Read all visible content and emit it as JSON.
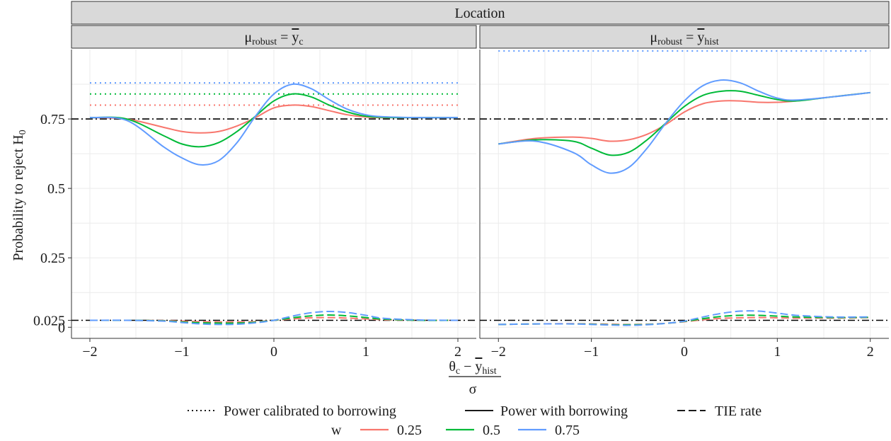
{
  "figure": {
    "strip_title": "Location",
    "ylabel_main": "Probability to reject H",
    "ylabel_sub": "0",
    "xlabel_num_main": "θ",
    "xlabel_num_sub1": "c",
    "xlabel_num_mid": " − ",
    "xlabel_num_ybar": "y",
    "xlabel_num_sub2": "hist",
    "xlabel_den": "σ"
  },
  "panels": [
    {
      "label_main": "μ",
      "label_sub1": "robust",
      "label_eq": " = ",
      "label_ybar": "y",
      "label_sub2": "c"
    },
    {
      "label_main": "μ",
      "label_sub1": "robust",
      "label_eq": " = ",
      "label_ybar": "y",
      "label_sub2": "hist"
    }
  ],
  "legend": {
    "linetype": [
      {
        "label": "Power calibrated to borrowing",
        "dash": "dotted"
      },
      {
        "label": "Power with borrowing",
        "dash": "solid"
      },
      {
        "label": "TIE rate",
        "dash": "dashed"
      }
    ],
    "color_title": "w",
    "colors": [
      {
        "label": "0.25",
        "color": "#F8766D"
      },
      {
        "label": "0.5",
        "color": "#00BA38"
      },
      {
        "label": "0.75",
        "color": "#619CFF"
      }
    ]
  },
  "chart_data": {
    "type": "line",
    "x_ticks": [
      "−2",
      "−1",
      "0",
      "1",
      "2"
    ],
    "y_ticks": [
      "0",
      "0.025",
      "0.25",
      "0.5",
      "0.75"
    ],
    "xlim": [
      -2.2,
      2.2
    ],
    "ylim": [
      -0.04,
      1.0
    ],
    "reference_line": {
      "y": 0.75,
      "style": "dotdash"
    },
    "reference_line_tie": {
      "y": 0.025,
      "style": "dotdash"
    },
    "panels": [
      {
        "x": [
          -2.0,
          -1.6,
          -1.2,
          -1.0,
          -0.8,
          -0.6,
          -0.4,
          -0.2,
          0.0,
          0.2,
          0.4,
          0.6,
          0.8,
          1.0,
          1.2,
          1.6,
          2.0
        ],
        "series": [
          {
            "w": "0.25",
            "kind": "calibrated",
            "const": 0.8
          },
          {
            "w": "0.5",
            "kind": "calibrated",
            "const": 0.84
          },
          {
            "w": "0.75",
            "kind": "calibrated",
            "const": 0.88
          },
          {
            "w": "0.25",
            "kind": "power",
            "values": [
              0.755,
              0.75,
              0.72,
              0.705,
              0.7,
              0.705,
              0.725,
              0.755,
              0.79,
              0.8,
              0.795,
              0.78,
              0.765,
              0.757,
              0.755,
              0.755,
              0.755
            ]
          },
          {
            "w": "0.5",
            "kind": "power",
            "values": [
              0.755,
              0.75,
              0.69,
              0.66,
              0.65,
              0.665,
              0.705,
              0.76,
              0.815,
              0.84,
              0.83,
              0.8,
              0.775,
              0.76,
              0.756,
              0.755,
              0.755
            ]
          },
          {
            "w": "0.75",
            "kind": "power",
            "values": [
              0.755,
              0.745,
              0.65,
              0.61,
              0.585,
              0.6,
              0.665,
              0.76,
              0.84,
              0.875,
              0.86,
              0.82,
              0.785,
              0.765,
              0.758,
              0.755,
              0.755
            ]
          },
          {
            "w": "0.25",
            "kind": "tie",
            "values": [
              0.025,
              0.025,
              0.024,
              0.022,
              0.02,
              0.019,
              0.019,
              0.02,
              0.025,
              0.03,
              0.034,
              0.035,
              0.033,
              0.03,
              0.027,
              0.025,
              0.025
            ]
          },
          {
            "w": "0.5",
            "kind": "tie",
            "values": [
              0.025,
              0.025,
              0.023,
              0.019,
              0.016,
              0.015,
              0.015,
              0.018,
              0.025,
              0.034,
              0.041,
              0.044,
              0.041,
              0.035,
              0.029,
              0.025,
              0.025
            ]
          },
          {
            "w": "0.75",
            "kind": "tie",
            "values": [
              0.025,
              0.025,
              0.022,
              0.017,
              0.012,
              0.01,
              0.011,
              0.016,
              0.025,
              0.04,
              0.052,
              0.057,
              0.053,
              0.043,
              0.032,
              0.026,
              0.025
            ]
          }
        ]
      },
      {
        "x": [
          -2.0,
          -1.6,
          -1.2,
          -1.0,
          -0.8,
          -0.6,
          -0.4,
          -0.2,
          0.0,
          0.2,
          0.4,
          0.6,
          0.8,
          1.0,
          1.2,
          1.6,
          2.0
        ],
        "series": [
          {
            "w": "0.75",
            "kind": "calibrated",
            "const": 0.995
          },
          {
            "w": "0.25",
            "kind": "power",
            "values": [
              0.66,
              0.68,
              0.685,
              0.68,
              0.67,
              0.675,
              0.695,
              0.73,
              0.775,
              0.805,
              0.815,
              0.815,
              0.81,
              0.81,
              0.815,
              0.83,
              0.845
            ]
          },
          {
            "w": "0.5",
            "kind": "power",
            "values": [
              0.66,
              0.675,
              0.67,
              0.645,
              0.62,
              0.63,
              0.675,
              0.735,
              0.795,
              0.835,
              0.85,
              0.85,
              0.835,
              0.82,
              0.815,
              0.83,
              0.845
            ]
          },
          {
            "w": "0.75",
            "kind": "power",
            "values": [
              0.66,
              0.67,
              0.63,
              0.585,
              0.555,
              0.575,
              0.645,
              0.735,
              0.815,
              0.87,
              0.89,
              0.88,
              0.85,
              0.825,
              0.818,
              0.83,
              0.845
            ]
          },
          {
            "w": "0.25",
            "kind": "tie",
            "values": [
              0.01,
              0.012,
              0.013,
              0.012,
              0.011,
              0.01,
              0.011,
              0.014,
              0.02,
              0.027,
              0.032,
              0.034,
              0.035,
              0.034,
              0.033,
              0.033,
              0.035
            ]
          },
          {
            "w": "0.5",
            "kind": "tie",
            "values": [
              0.01,
              0.012,
              0.012,
              0.011,
              0.009,
              0.009,
              0.01,
              0.014,
              0.021,
              0.031,
              0.039,
              0.043,
              0.043,
              0.04,
              0.037,
              0.035,
              0.036
            ]
          },
          {
            "w": "0.75",
            "kind": "tie",
            "values": [
              0.01,
              0.012,
              0.012,
              0.01,
              0.008,
              0.007,
              0.009,
              0.014,
              0.022,
              0.037,
              0.05,
              0.058,
              0.058,
              0.051,
              0.043,
              0.037,
              0.037
            ]
          }
        ]
      }
    ]
  }
}
